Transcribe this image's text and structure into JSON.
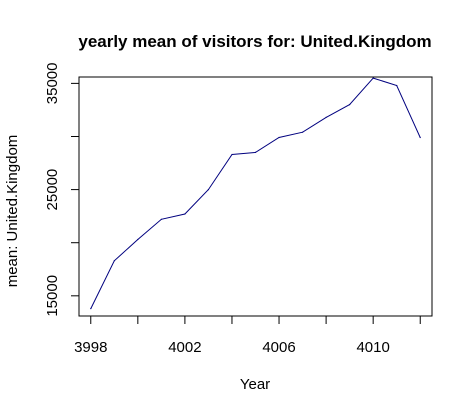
{
  "chart_data": {
    "type": "line",
    "title": "yearly mean of visitors for: United.Kingdom",
    "xlabel": "Year",
    "ylabel": "mean: United.Kingdom",
    "x": [
      3998,
      3999,
      4000,
      4001,
      4002,
      4003,
      4004,
      4005,
      4006,
      4007,
      4008,
      4009,
      4010,
      4011,
      4012
    ],
    "series": [
      {
        "values": [
          13800,
          18300,
          20300,
          22200,
          22700,
          25000,
          28300,
          28500,
          29900,
          30400,
          31800,
          33000,
          35500,
          34800,
          29900
        ]
      }
    ],
    "xlim": [
      3997.5,
      4012.5
    ],
    "ylim": [
      13100,
      35600
    ],
    "xticks": [
      3998,
      4000,
      4002,
      4004,
      4006,
      4008,
      4010,
      4012
    ],
    "xtick_labels": [
      "3998",
      "",
      "4002",
      "",
      "4006",
      "",
      "4010",
      ""
    ],
    "yticks": [
      15000,
      20000,
      25000,
      30000,
      35000
    ],
    "ytick_labels": [
      "15000",
      "",
      "25000",
      "",
      "35000"
    ],
    "line_color": "#00007F",
    "grid": false,
    "legend": "none"
  }
}
